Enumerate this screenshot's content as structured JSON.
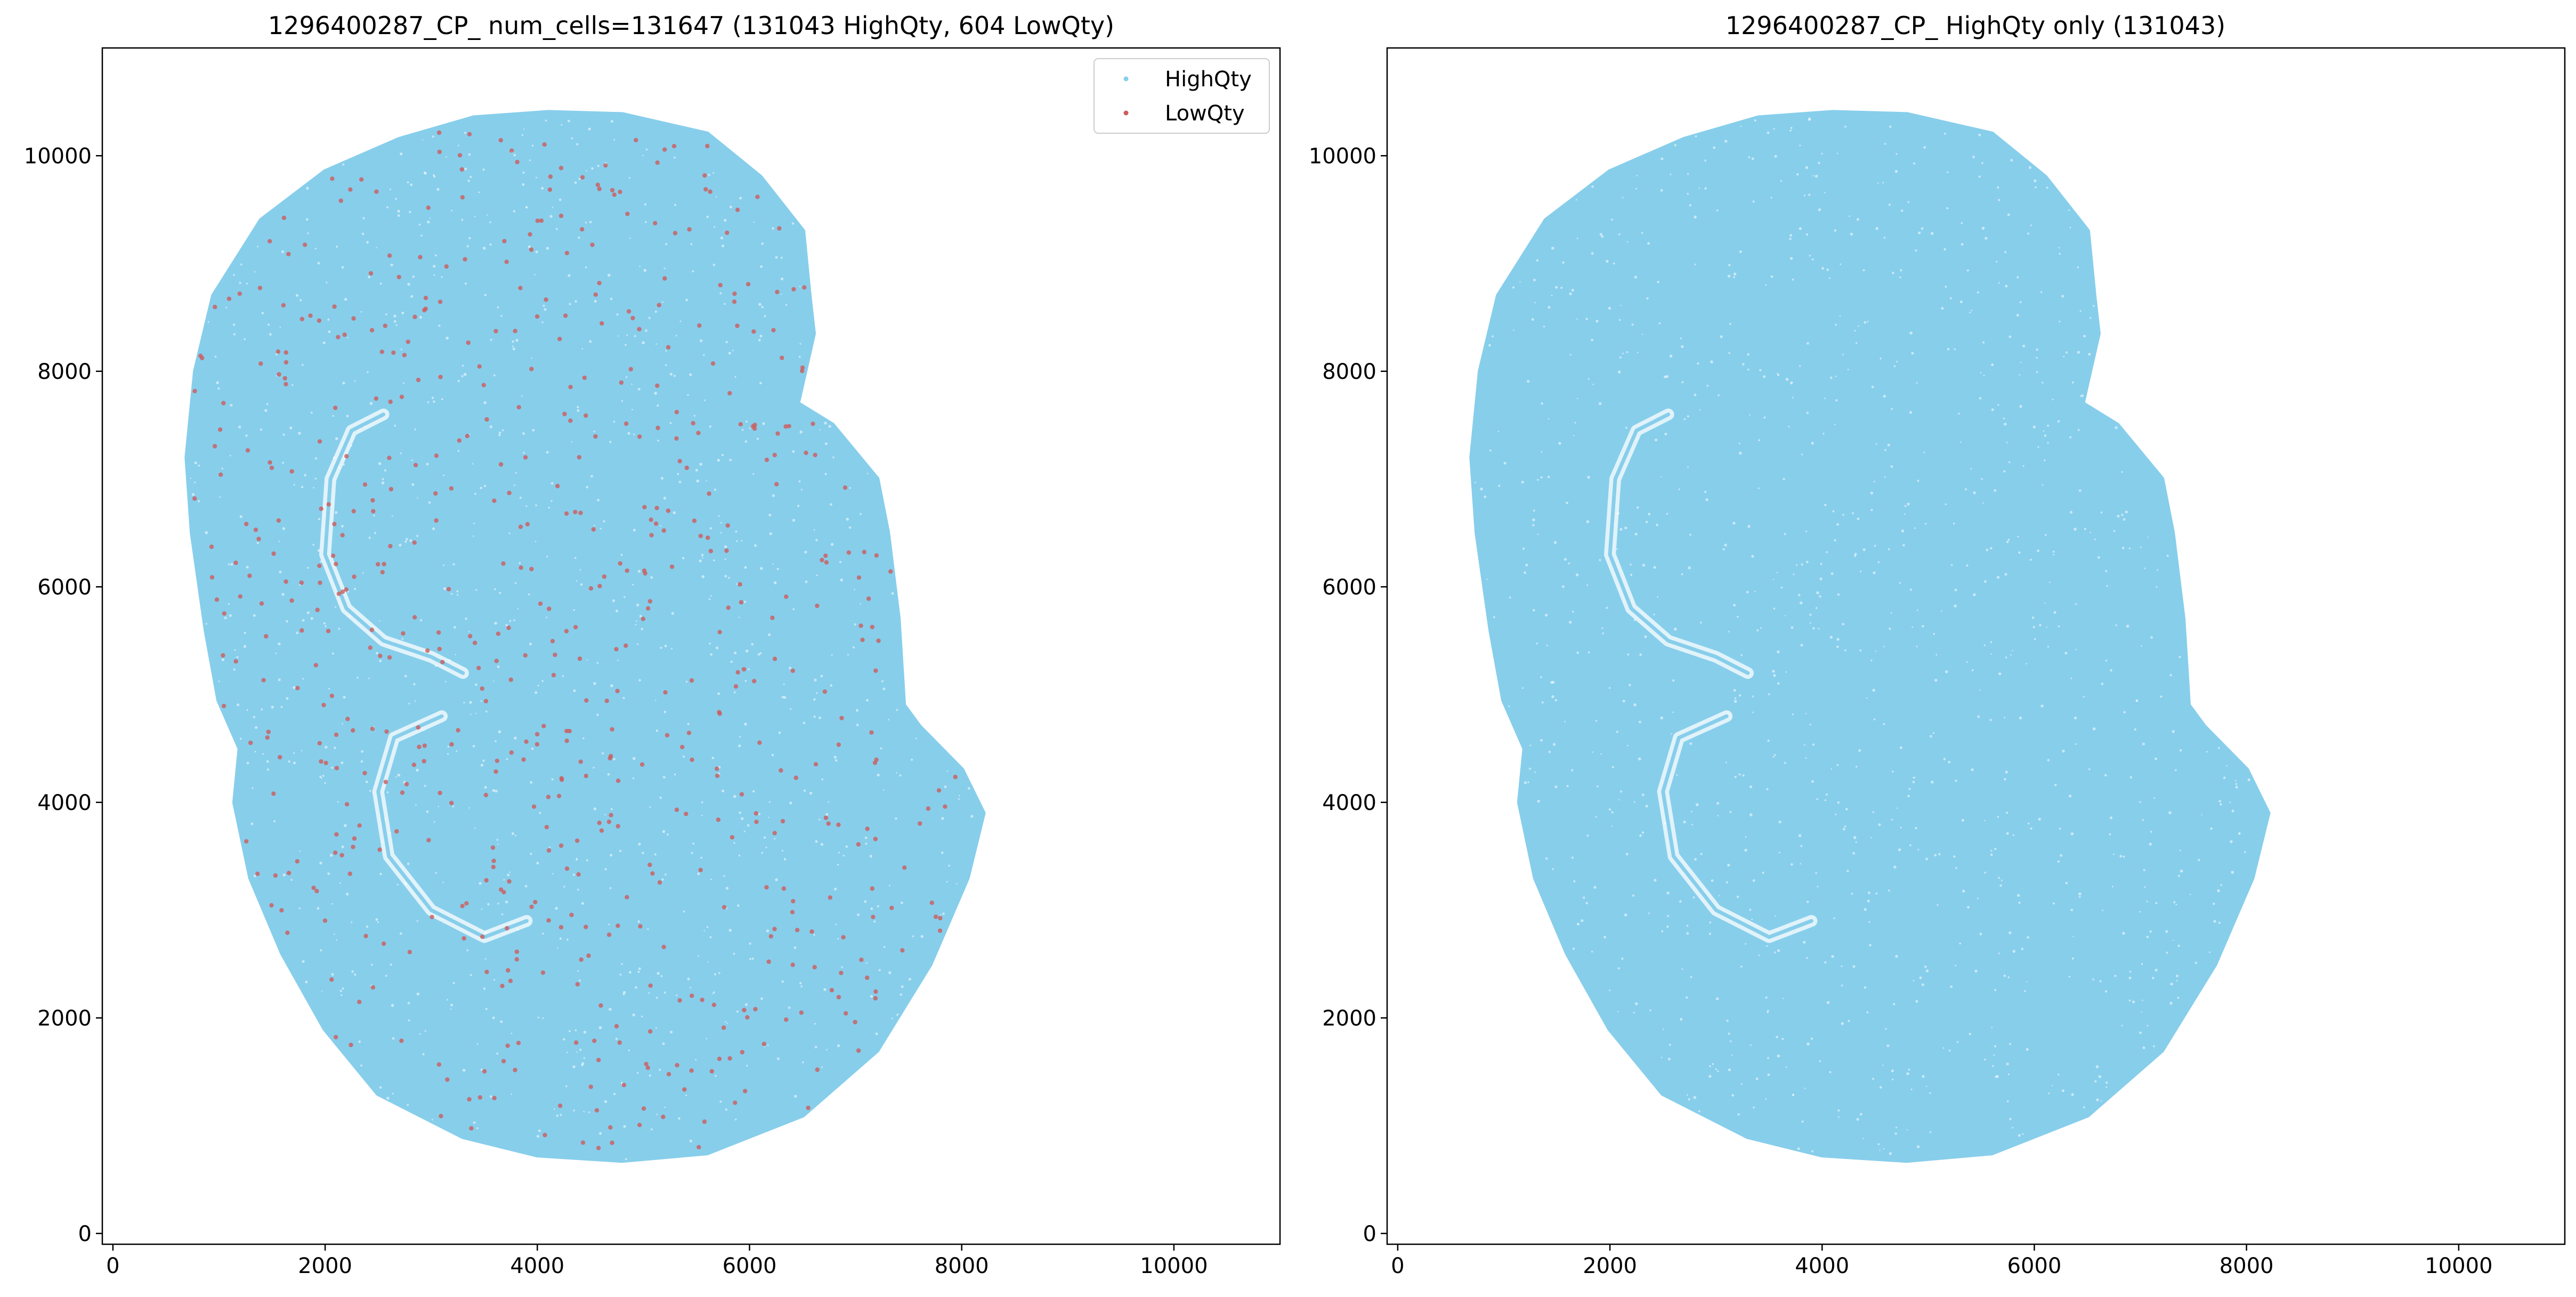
{
  "chart_data": [
    {
      "type": "scatter",
      "title": "1296400287_CP_ num_cells=131647 (131043 HighQty, 604 LowQty)",
      "xlabel": "",
      "ylabel": "",
      "xlim": [
        -100,
        11000
      ],
      "ylim": [
        -100,
        11000
      ],
      "xticks": [
        0,
        2000,
        4000,
        6000,
        8000,
        10000
      ],
      "yticks": [
        0,
        2000,
        4000,
        6000,
        8000,
        10000
      ],
      "grid": false,
      "legend_position": "top-right",
      "series": [
        {
          "name": "HighQty",
          "color": "#87ceeb",
          "count": 131043
        },
        {
          "name": "LowQty",
          "color": "#cd5c5c",
          "count": 604
        }
      ],
      "tissue_outline": [
        [
          4100,
          10400
        ],
        [
          4800,
          10380
        ],
        [
          5600,
          10200
        ],
        [
          6100,
          9800
        ],
        [
          6500,
          9300
        ],
        [
          6560,
          8700
        ],
        [
          6600,
          8350
        ],
        [
          6450,
          7700
        ],
        [
          6780,
          7500
        ],
        [
          7200,
          7000
        ],
        [
          7300,
          6500
        ],
        [
          7400,
          5700
        ],
        [
          7450,
          4900
        ],
        [
          7600,
          4700
        ],
        [
          8000,
          4300
        ],
        [
          8200,
          3900
        ],
        [
          8050,
          3300
        ],
        [
          7700,
          2500
        ],
        [
          7200,
          1700
        ],
        [
          6500,
          1100
        ],
        [
          5600,
          750
        ],
        [
          4800,
          680
        ],
        [
          4000,
          730
        ],
        [
          3300,
          900
        ],
        [
          2500,
          1300
        ],
        [
          2000,
          1900
        ],
        [
          1600,
          2600
        ],
        [
          1300,
          3300
        ],
        [
          1150,
          4000
        ],
        [
          1200,
          4500
        ],
        [
          1000,
          4950
        ],
        [
          880,
          5600
        ],
        [
          750,
          6500
        ],
        [
          700,
          7200
        ],
        [
          780,
          8000
        ],
        [
          950,
          8700
        ],
        [
          1400,
          9400
        ],
        [
          2000,
          9850
        ],
        [
          2700,
          10150
        ],
        [
          3400,
          10350
        ]
      ],
      "hippocampus_stroke": [
        [
          2550,
          7600
        ],
        [
          2250,
          7450
        ],
        [
          2050,
          7000
        ],
        [
          2000,
          6300
        ],
        [
          2200,
          5800
        ],
        [
          2550,
          5500
        ],
        [
          3000,
          5350
        ],
        [
          3300,
          5200
        ]
      ],
      "lower_stroke": [
        [
          3100,
          4800
        ],
        [
          2650,
          4600
        ],
        [
          2500,
          4100
        ],
        [
          2600,
          3500
        ],
        [
          3000,
          3000
        ],
        [
          3500,
          2750
        ],
        [
          3900,
          2900
        ]
      ]
    },
    {
      "type": "scatter",
      "title": "1296400287_CP_ HighQty only (131043)",
      "xlabel": "",
      "ylabel": "",
      "xlim": [
        -100,
        11000
      ],
      "ylim": [
        -100,
        11000
      ],
      "xticks": [
        0,
        2000,
        4000,
        6000,
        8000,
        10000
      ],
      "yticks": [
        0,
        2000,
        4000,
        6000,
        8000,
        10000
      ],
      "grid": false,
      "series": [
        {
          "name": "HighQty",
          "color": "#87ceeb",
          "count": 131043
        }
      ],
      "tissue_outline": [
        [
          4100,
          10400
        ],
        [
          4800,
          10380
        ],
        [
          5600,
          10200
        ],
        [
          6100,
          9800
        ],
        [
          6500,
          9300
        ],
        [
          6560,
          8700
        ],
        [
          6600,
          8350
        ],
        [
          6450,
          7700
        ],
        [
          6780,
          7500
        ],
        [
          7200,
          7000
        ],
        [
          7300,
          6500
        ],
        [
          7400,
          5700
        ],
        [
          7450,
          4900
        ],
        [
          7600,
          4700
        ],
        [
          8000,
          4300
        ],
        [
          8200,
          3900
        ],
        [
          8050,
          3300
        ],
        [
          7700,
          2500
        ],
        [
          7200,
          1700
        ],
        [
          6500,
          1100
        ],
        [
          5600,
          750
        ],
        [
          4800,
          680
        ],
        [
          4000,
          730
        ],
        [
          3300,
          900
        ],
        [
          2500,
          1300
        ],
        [
          2000,
          1900
        ],
        [
          1600,
          2600
        ],
        [
          1300,
          3300
        ],
        [
          1150,
          4000
        ],
        [
          1200,
          4500
        ],
        [
          1000,
          4950
        ],
        [
          880,
          5600
        ],
        [
          750,
          6500
        ],
        [
          700,
          7200
        ],
        [
          780,
          8000
        ],
        [
          950,
          8700
        ],
        [
          1400,
          9400
        ],
        [
          2000,
          9850
        ],
        [
          2700,
          10150
        ],
        [
          3400,
          10350
        ]
      ],
      "hippocampus_stroke": [
        [
          2550,
          7600
        ],
        [
          2250,
          7450
        ],
        [
          2050,
          7000
        ],
        [
          2000,
          6300
        ],
        [
          2200,
          5800
        ],
        [
          2550,
          5500
        ],
        [
          3000,
          5350
        ],
        [
          3300,
          5200
        ]
      ],
      "lower_stroke": [
        [
          3100,
          4800
        ],
        [
          2650,
          4600
        ],
        [
          2500,
          4100
        ],
        [
          2600,
          3500
        ],
        [
          3000,
          3000
        ],
        [
          3500,
          2750
        ],
        [
          3900,
          2900
        ]
      ]
    }
  ]
}
